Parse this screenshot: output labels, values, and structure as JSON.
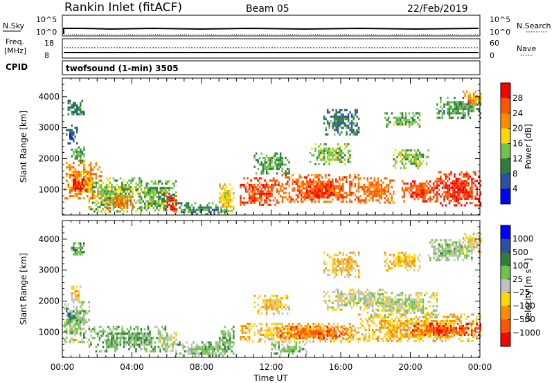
{
  "header": {
    "station": "Rankin Inlet (fitACF)",
    "beam": "Beam 05",
    "date": "22/Feb/2019"
  },
  "strip_panels": {
    "nsky": {
      "label": "N.Sky",
      "left_ticks": [
        "10^5",
        "10^0"
      ],
      "right_ticks": [
        "10^5",
        "10^0"
      ],
      "right_label": "N.Search"
    },
    "freq": {
      "label_line1": "Freq.",
      "label_line2": "[MHz]",
      "left_ticks": [
        "18",
        "8"
      ],
      "right_ticks": [
        "60",
        "0"
      ],
      "right_label": "Nave"
    },
    "cpid": {
      "label": "CPID",
      "value": "twofsound (1-min) 3505"
    }
  },
  "x_axis": {
    "label": "Time UT",
    "ticks": [
      "00:00",
      "04:00",
      "08:00",
      "12:00",
      "16:00",
      "20:00",
      "00:00"
    ]
  },
  "power_colorbar": {
    "label": "Power [dB]",
    "ticks": [
      "28",
      "24",
      "20",
      "16",
      "12",
      "8",
      "4"
    ],
    "colors": [
      "#0000ff",
      "#2b4fa8",
      "#2e7d3e",
      "#6fc24a",
      "#ffd800",
      "#ff8c00",
      "#ff5500",
      "#ff0000"
    ]
  },
  "velocity_colorbar": {
    "label": "Velocity [m s⁻¹]",
    "ticks": [
      "1000",
      "500",
      "100",
      "25",
      "−25",
      "−100",
      "−500",
      "−1000"
    ],
    "colors": [
      "#0000ff",
      "#2b4fa8",
      "#2e7d3e",
      "#6fc24a",
      "#c0c0c0",
      "#ffd800",
      "#ff8c00",
      "#ff5500",
      "#ff0000"
    ]
  },
  "chart_data": [
    {
      "type": "heatmap",
      "name": "power",
      "title": "",
      "xlabel": "Time UT",
      "ylabel": "Slant Range [km]",
      "xlim": [
        0,
        24
      ],
      "ylim": [
        180,
        4600
      ],
      "yticks": [
        1000,
        2000,
        3000,
        4000
      ],
      "colorbar_label": "Power [dB]",
      "value_range": [
        0,
        32
      ],
      "regions": [
        {
          "t": [
            0.1,
            2.2
          ],
          "r": [
            700,
            1900
          ],
          "level": 22
        },
        {
          "t": [
            0.3,
            1.3
          ],
          "r": [
            900,
            1500
          ],
          "level": 29
        },
        {
          "t": [
            0.5,
            1.2
          ],
          "r": [
            1900,
            2400
          ],
          "level": 12
        },
        {
          "t": [
            0.3,
            1.2
          ],
          "r": [
            3400,
            3900
          ],
          "level": 10
        },
        {
          "t": [
            0.2,
            0.8
          ],
          "r": [
            2500,
            3100
          ],
          "level": 7
        },
        {
          "t": [
            1.5,
            4.5
          ],
          "r": [
            300,
            1400
          ],
          "level": 14
        },
        {
          "t": [
            2.5,
            4.0
          ],
          "r": [
            400,
            800
          ],
          "level": 24
        },
        {
          "t": [
            4.2,
            6.5
          ],
          "r": [
            300,
            1300
          ],
          "level": 13
        },
        {
          "t": [
            5.8,
            6.5
          ],
          "r": [
            300,
            900
          ],
          "level": 29
        },
        {
          "t": [
            6.5,
            9.5
          ],
          "r": [
            200,
            600
          ],
          "level": 10
        },
        {
          "t": [
            9.0,
            9.8
          ],
          "r": [
            300,
            1200
          ],
          "level": 18
        },
        {
          "t": [
            10.2,
            12.5
          ],
          "r": [
            500,
            1400
          ],
          "level": 27
        },
        {
          "t": [
            12.5,
            17.0
          ],
          "r": [
            600,
            1500
          ],
          "level": 25
        },
        {
          "t": [
            14.0,
            15.5
          ],
          "r": [
            700,
            1200
          ],
          "level": 29
        },
        {
          "t": [
            11.0,
            13.0
          ],
          "r": [
            1500,
            2200
          ],
          "level": 12
        },
        {
          "t": [
            14.2,
            16.5
          ],
          "r": [
            1800,
            2500
          ],
          "level": 14
        },
        {
          "t": [
            17.0,
            19.0
          ],
          "r": [
            600,
            1400
          ],
          "level": 24
        },
        {
          "t": [
            19.0,
            21.0
          ],
          "r": [
            1700,
            2300
          ],
          "level": 14
        },
        {
          "t": [
            21.5,
            24.0
          ],
          "r": [
            500,
            1600
          ],
          "level": 28
        },
        {
          "t": [
            19.5,
            21.5
          ],
          "r": [
            600,
            1300
          ],
          "level": 27
        },
        {
          "t": [
            15.0,
            17.0
          ],
          "r": [
            2800,
            3600
          ],
          "level": 9
        },
        {
          "t": [
            18.5,
            20.5
          ],
          "r": [
            3000,
            3500
          ],
          "level": 13
        },
        {
          "t": [
            21.5,
            24.0
          ],
          "r": [
            3300,
            4000
          ],
          "level": 11
        },
        {
          "t": [
            23.0,
            24.0
          ],
          "r": [
            3700,
            4200
          ],
          "level": 22
        }
      ]
    },
    {
      "type": "heatmap",
      "name": "velocity",
      "title": "",
      "xlabel": "Time UT",
      "ylabel": "Slant Range [km]",
      "xlim": [
        0,
        24
      ],
      "ylim": [
        180,
        4600
      ],
      "yticks": [
        1000,
        2000,
        3000,
        4000
      ],
      "colorbar_label": "Velocity [m s⁻¹]",
      "value_range": [
        -1000,
        1000
      ],
      "regions": [
        {
          "t": [
            0.1,
            1.5
          ],
          "r": [
            700,
            2000
          ],
          "level": 100
        },
        {
          "t": [
            0.2,
            0.8
          ],
          "r": [
            1200,
            1700
          ],
          "level": 400
        },
        {
          "t": [
            0.5,
            1.0
          ],
          "r": [
            2000,
            2500
          ],
          "level": -150
        },
        {
          "t": [
            0.4,
            1.2
          ],
          "r": [
            3400,
            3900
          ],
          "level": 300
        },
        {
          "t": [
            1.5,
            6.0
          ],
          "r": [
            400,
            1200
          ],
          "level": 250
        },
        {
          "t": [
            5.5,
            6.5
          ],
          "r": [
            400,
            1000
          ],
          "level": 0
        },
        {
          "t": [
            6.5,
            9.5
          ],
          "r": [
            200,
            700
          ],
          "level": 150
        },
        {
          "t": [
            9.0,
            9.8
          ],
          "r": [
            300,
            1200
          ],
          "level": 250
        },
        {
          "t": [
            10.2,
            17.0
          ],
          "r": [
            700,
            1300
          ],
          "level": -300
        },
        {
          "t": [
            12.5,
            16.5
          ],
          "r": [
            800,
            1200
          ],
          "level": -600
        },
        {
          "t": [
            11.0,
            13.0
          ],
          "r": [
            1600,
            2200
          ],
          "level": -200
        },
        {
          "t": [
            12.0,
            14.0
          ],
          "r": [
            300,
            700
          ],
          "level": 150
        },
        {
          "t": [
            15.0,
            18.5
          ],
          "r": [
            1700,
            2400
          ],
          "level": 0
        },
        {
          "t": [
            17.5,
            21.5
          ],
          "r": [
            1500,
            2300
          ],
          "level": 0
        },
        {
          "t": [
            17.0,
            24.0
          ],
          "r": [
            700,
            1600
          ],
          "level": -300
        },
        {
          "t": [
            20.0,
            24.0
          ],
          "r": [
            900,
            1300
          ],
          "level": -700
        },
        {
          "t": [
            15.0,
            17.0
          ],
          "r": [
            2800,
            3600
          ],
          "level": -200
        },
        {
          "t": [
            18.5,
            20.5
          ],
          "r": [
            3000,
            3600
          ],
          "level": -250
        },
        {
          "t": [
            21.0,
            23.5
          ],
          "r": [
            3300,
            4000
          ],
          "level": 100
        },
        {
          "t": [
            23.0,
            24.0
          ],
          "r": [
            3600,
            4200
          ],
          "level": -150
        }
      ]
    }
  ]
}
